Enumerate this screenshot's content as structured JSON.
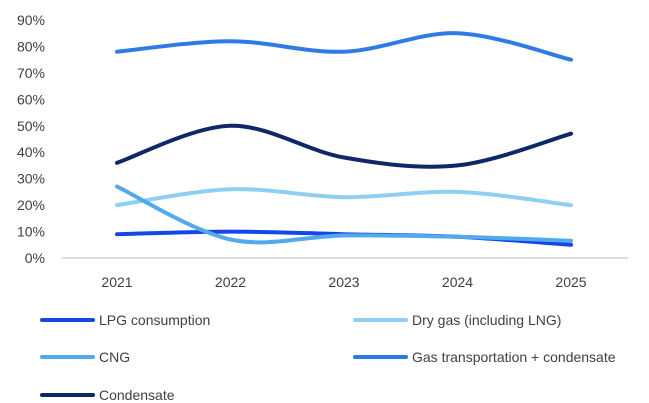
{
  "chart_data": {
    "type": "line",
    "x": [
      "2021",
      "2022",
      "2023",
      "2024",
      "2025"
    ],
    "ylim": [
      0,
      90
    ],
    "yticks": [
      "0%",
      "10%",
      "20%",
      "30%",
      "40%",
      "50%",
      "60%",
      "70%",
      "80%",
      "90%"
    ],
    "grid": false,
    "smooth": true,
    "legend_position": "bottom",
    "series": [
      {
        "name": "LPG consumption",
        "color": "#1547E6",
        "values": [
          9,
          10,
          9,
          8,
          5
        ]
      },
      {
        "name": "Dry gas (including LNG)",
        "color": "#8FD0F2",
        "values": [
          20,
          26,
          23,
          25,
          20
        ]
      },
      {
        "name": "CNG",
        "color": "#52AAEC",
        "values": [
          27,
          7,
          8.5,
          8,
          6.5
        ]
      },
      {
        "name": "Gas transportation + condensate",
        "color": "#2F7BE6",
        "values": [
          78,
          82,
          78,
          85,
          75
        ]
      },
      {
        "name": "Condensate",
        "color": "#0E2768",
        "values": [
          36,
          50,
          38,
          35,
          47
        ]
      }
    ]
  }
}
